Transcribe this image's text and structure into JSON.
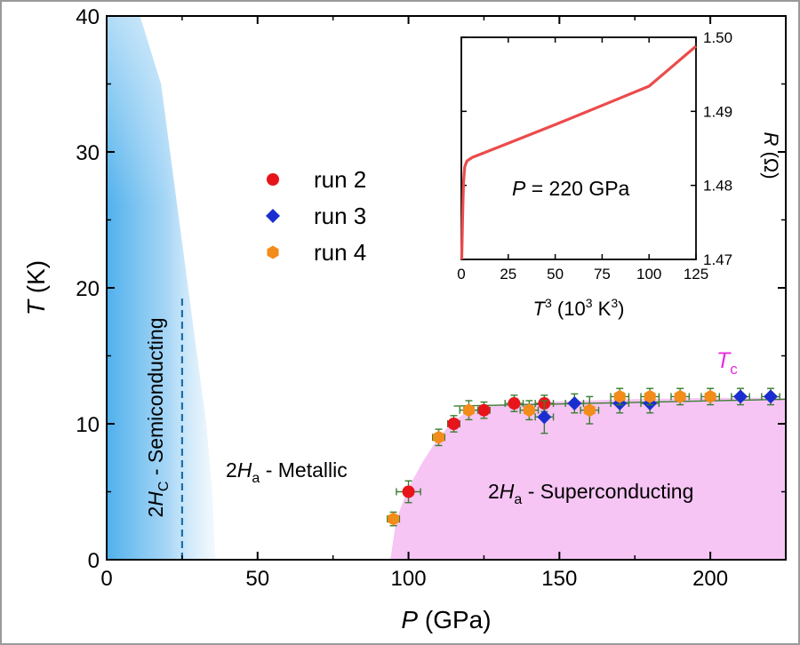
{
  "chart_data": {
    "type": "scatter",
    "main": {
      "xlabel_var": "P",
      "xlabel_unit": " (GPa)",
      "ylabel_var": "T",
      "ylabel_unit": " (K)",
      "xlim": [
        0,
        225
      ],
      "ylim": [
        0,
        40
      ],
      "x_ticks": [
        0,
        50,
        100,
        150,
        200
      ],
      "y_ticks": [
        0,
        10,
        20,
        30,
        40
      ],
      "tick_labels_x": [
        "0",
        "50",
        "100",
        "150",
        "200"
      ],
      "tick_labels_y": [
        "0",
        "10",
        "20",
        "30",
        "40"
      ],
      "series": [
        {
          "name": "run 2",
          "color": "#e8141b",
          "marker": "circle",
          "points": [
            {
              "x": 100,
              "y": 5,
              "xerr": 4,
              "yerr": 0.8
            },
            {
              "x": 115,
              "y": 10,
              "xerr": 2,
              "yerr": 0.6
            },
            {
              "x": 125,
              "y": 11,
              "xerr": 2,
              "yerr": 0.6
            },
            {
              "x": 135,
              "y": 11.5,
              "xerr": 3,
              "yerr": 0.6
            },
            {
              "x": 145,
              "y": 11.5,
              "xerr": 3,
              "yerr": 0.6
            }
          ]
        },
        {
          "name": "run 3",
          "color": "#1a2ecf",
          "marker": "diamond",
          "points": [
            {
              "x": 145,
              "y": 10.5,
              "xerr": 3,
              "yerr": 1.2
            },
            {
              "x": 155,
              "y": 11.5,
              "xerr": 3,
              "yerr": 0.7
            },
            {
              "x": 170,
              "y": 11.5,
              "xerr": 3,
              "yerr": 0.7
            },
            {
              "x": 180,
              "y": 11.5,
              "xerr": 3,
              "yerr": 0.7
            },
            {
              "x": 210,
              "y": 12,
              "xerr": 3,
              "yerr": 0.6
            },
            {
              "x": 220,
              "y": 12,
              "xerr": 3,
              "yerr": 0.6
            }
          ]
        },
        {
          "name": "run 4",
          "color": "#f28c1a",
          "marker": "hexagon",
          "points": [
            {
              "x": 95,
              "y": 3,
              "xerr": 2,
              "yerr": 0.5
            },
            {
              "x": 110,
              "y": 9,
              "xerr": 2,
              "yerr": 0.6
            },
            {
              "x": 120,
              "y": 11,
              "xerr": 3,
              "yerr": 0.7
            },
            {
              "x": 140,
              "y": 11,
              "xerr": 3,
              "yerr": 0.7
            },
            {
              "x": 160,
              "y": 11,
              "xerr": 3,
              "yerr": 1.0
            },
            {
              "x": 170,
              "y": 12,
              "xerr": 3,
              "yerr": 0.6
            },
            {
              "x": 180,
              "y": 12,
              "xerr": 3,
              "yerr": 0.6
            },
            {
              "x": 190,
              "y": 12,
              "xerr": 3,
              "yerr": 0.6
            },
            {
              "x": 200,
              "y": 12,
              "xerr": 3,
              "yerr": 0.6
            }
          ]
        }
      ],
      "errorbar_color": "#3a7d32",
      "tc_boundary": [
        [
          94,
          0
        ],
        [
          96,
          3
        ],
        [
          100,
          5.3
        ],
        [
          105,
          7.3
        ],
        [
          110,
          9
        ],
        [
          115,
          10.2
        ],
        [
          120,
          11
        ],
        [
          130,
          11.4
        ],
        [
          145,
          11.6
        ],
        [
          170,
          11.8
        ],
        [
          200,
          11.9
        ],
        [
          225,
          11.9
        ]
      ],
      "tc_line": [
        [
          115,
          11.3
        ],
        [
          225,
          11.8
        ]
      ],
      "semiconducting_edge": [
        [
          11,
          40
        ],
        [
          18,
          35
        ],
        [
          21,
          30
        ],
        [
          24,
          25
        ],
        [
          27,
          20
        ],
        [
          30,
          15
        ],
        [
          33,
          10
        ],
        [
          35,
          5
        ],
        [
          36,
          0
        ]
      ],
      "dashed_line": {
        "x": 25,
        "y_top": 19.4
      },
      "region_colors": {
        "semiconducting": "#4fb0ec",
        "superconducting": "#f6c5f4"
      },
      "regions": {
        "semiconducting": {
          "pre": "2",
          "italic": "H",
          "sub": "C",
          "post": " - Semiconducting"
        },
        "metallic": {
          "pre": "2",
          "italic": "H",
          "sub": "a",
          "post": " - Metallic"
        },
        "superconducting": {
          "pre": "2",
          "italic": "H",
          "sub": "a",
          "post": " - Superconducting"
        }
      },
      "tc_label": {
        "italic": "T",
        "sub": "c"
      },
      "tc_color": "#e62ee0",
      "legend": [
        "run 2",
        "run 3",
        "run 4"
      ]
    },
    "inset": {
      "type": "line",
      "xlabel_var": "T",
      "xlabel_sup": "3",
      "xlabel_unit": " (10",
      "xlabel_unit_sup": "3",
      "xlabel_unit_end": " K",
      "xlabel_unit_sup2": "3",
      "xlabel_close": ")",
      "ylabel_var": "R",
      "ylabel_unit": " (Ω)",
      "xlim": [
        0,
        125
      ],
      "ylim": [
        1.47,
        1.5
      ],
      "x_ticks": [
        0,
        25,
        50,
        75,
        100,
        125
      ],
      "y_ticks": [
        1.47,
        1.48,
        1.49,
        1.5
      ],
      "tick_labels_x": [
        "0",
        "25",
        "50",
        "75",
        "100",
        "125"
      ],
      "tick_labels_y": [
        "1.47",
        "1.48",
        "1.49",
        "1.50"
      ],
      "annotation": {
        "italic": "P",
        "rest": " = 220 GPa"
      },
      "line_color": "#ec4b4b",
      "curve": [
        [
          0.2,
          1.47
        ],
        [
          0.4,
          1.472
        ],
        [
          0.6,
          1.475
        ],
        [
          0.9,
          1.478
        ],
        [
          1.2,
          1.4805
        ],
        [
          1.8,
          1.4825
        ],
        [
          3,
          1.4833
        ],
        [
          6,
          1.4838
        ],
        [
          10,
          1.4842
        ],
        [
          25,
          1.4857
        ],
        [
          50,
          1.4882
        ],
        [
          75,
          1.4908
        ],
        [
          100,
          1.4934
        ],
        [
          125,
          1.4988
        ]
      ]
    }
  }
}
